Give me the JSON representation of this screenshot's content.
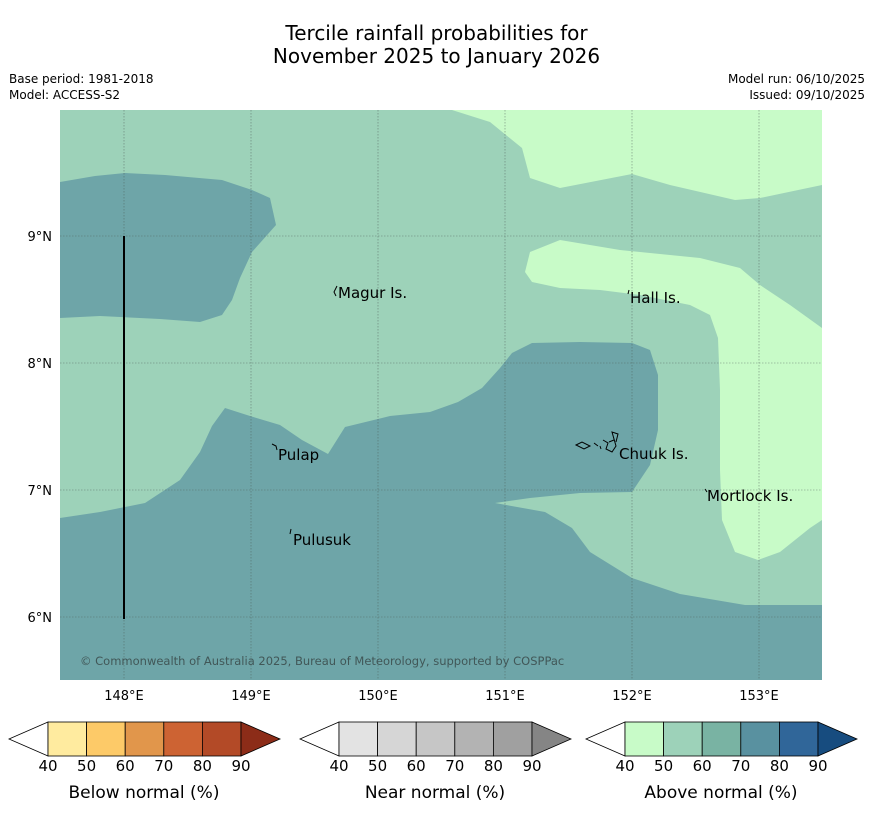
{
  "title": {
    "line1": "Tercile rainfall probabilities for",
    "line2": "November 2025 to January 2026"
  },
  "meta": {
    "base_period": "Base period: 1981-2018",
    "model": "Model: ACCESS-S2",
    "model_run": "Model run: 06/10/2025",
    "issued": "Issued: 09/10/2025"
  },
  "map": {
    "lat_ticks": [
      "9°N",
      "8°N",
      "7°N",
      "6°N"
    ],
    "lon_ticks": [
      "148°E",
      "149°E",
      "150°E",
      "151°E",
      "152°E",
      "153°E"
    ],
    "places": [
      {
        "name": "Magur Is."
      },
      {
        "name": "Hall Is."
      },
      {
        "name": "Pulap"
      },
      {
        "name": "Chuuk Is."
      },
      {
        "name": "Mortlock Is."
      },
      {
        "name": "Pulusuk"
      }
    ],
    "copyright": "© Commonwealth of Australia 2025, Bureau of Meteorology, supported by COSPPac",
    "colors": {
      "above_50_60": "#9dd2b9",
      "above_40_50": "#c8fbc8",
      "above_60_70": "#6ea5a8"
    }
  },
  "legends": [
    {
      "title": "Below normal (%)",
      "ticks": [
        "40",
        "50",
        "60",
        "70",
        "80",
        "90"
      ],
      "colors": [
        "#ffffff",
        "#ffeb9f",
        "#fdca68",
        "#e1964b",
        "#cd6333",
        "#b34a27",
        "#8c2c18"
      ]
    },
    {
      "title": "Near normal (%)",
      "ticks": [
        "40",
        "50",
        "60",
        "70",
        "80",
        "90"
      ],
      "colors": [
        "#ffffff",
        "#e3e3e3",
        "#d6d6d6",
        "#c6c6c6",
        "#b3b3b3",
        "#a0a0a0",
        "#858585"
      ]
    },
    {
      "title": "Above normal (%)",
      "ticks": [
        "40",
        "50",
        "60",
        "70",
        "80",
        "90"
      ],
      "colors": [
        "#ffffff",
        "#c8fbc8",
        "#9dd2b9",
        "#79b3a3",
        "#5991a0",
        "#306699",
        "#174c7f"
      ]
    }
  ]
}
